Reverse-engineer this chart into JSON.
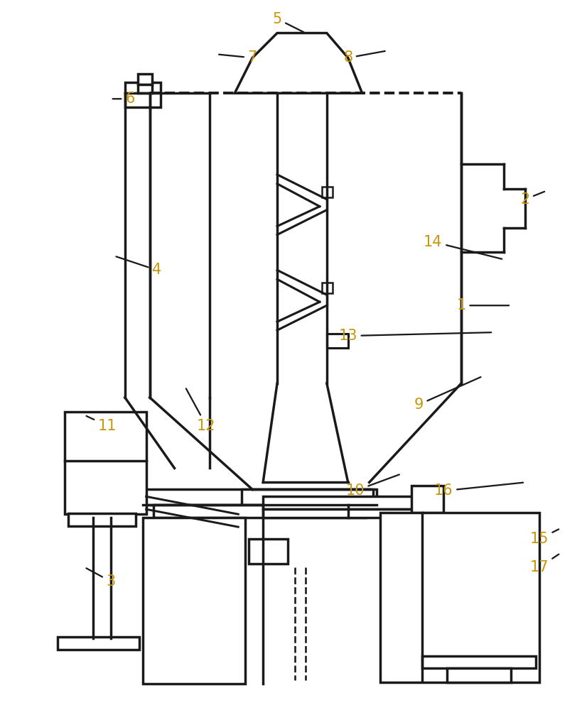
{
  "bg_color": "#ffffff",
  "line_color": "#1a1a1a",
  "label_color": "#c8960a",
  "lw": 2.5,
  "figsize": [
    8.19,
    10.0
  ]
}
